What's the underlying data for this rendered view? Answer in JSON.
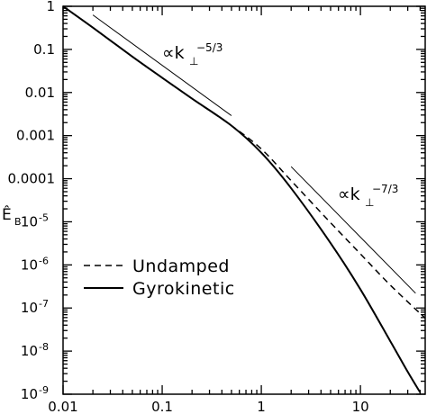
{
  "chart_data": {
    "type": "line",
    "xscale": "log",
    "yscale": "log",
    "xlim": [
      0.01,
      45
    ],
    "ylim": [
      1e-09,
      1
    ],
    "grid": false,
    "legend_position": "bottom-left",
    "xlabel": "",
    "ylabel": "Ê",
    "ylabel_sub": "B",
    "x_ticks": [
      {
        "value": 0.01,
        "label": "0.01"
      },
      {
        "value": 0.1,
        "label": "0.1"
      },
      {
        "value": 1,
        "label": "1"
      },
      {
        "value": 10,
        "label": "10"
      }
    ],
    "y_ticks": [
      {
        "value": 1,
        "label": "1"
      },
      {
        "value": 0.1,
        "label": "0.1"
      },
      {
        "value": 0.01,
        "label": "0.01"
      },
      {
        "value": 0.001,
        "label": "0.001"
      },
      {
        "value": 0.0001,
        "label": "0.0001"
      },
      {
        "value": 1e-05,
        "label": "10",
        "exp": "-5"
      },
      {
        "value": 1e-06,
        "label": "10",
        "exp": "-6"
      },
      {
        "value": 1e-07,
        "label": "10",
        "exp": "-7"
      },
      {
        "value": 1e-08,
        "label": "10",
        "exp": "-8"
      },
      {
        "value": 1e-09,
        "label": "10",
        "exp": "-9"
      }
    ],
    "series": [
      {
        "name": "Undamped",
        "style": "dashed",
        "color": "#000000",
        "x": [
          0.01,
          0.02,
          0.05,
          0.1,
          0.2,
          0.5,
          1,
          2,
          5,
          10,
          20,
          45
        ],
        "y": [
          1,
          0.32,
          0.068,
          0.022,
          0.0072,
          0.0017,
          0.00049,
          9e-05,
          9.5e-06,
          1.8e-06,
          3.4e-07,
          5.8e-08
        ]
      },
      {
        "name": "Gyrokinetic",
        "style": "solid",
        "color": "#000000",
        "x": [
          0.01,
          0.02,
          0.05,
          0.1,
          0.2,
          0.5,
          1,
          2,
          5,
          10,
          20,
          30,
          40
        ],
        "y": [
          1,
          0.32,
          0.068,
          0.022,
          0.0072,
          0.0017,
          0.0004,
          6e-05,
          3.2e-06,
          2.7e-07,
          1.7e-08,
          3.3e-09,
          1.1e-09
        ]
      }
    ],
    "reference_lines": [
      {
        "label": "∝k",
        "sub": "⊥",
        "sup": "−5/3",
        "x": [
          0.02,
          0.5
        ],
        "y": [
          0.63,
          0.0029
        ]
      },
      {
        "label": "∝k",
        "sub": "⊥",
        "sup": "−7/3",
        "x": [
          2,
          36
        ],
        "y": [
          0.00019,
          2.2e-07
        ]
      }
    ],
    "legend": [
      {
        "label": "Undamped",
        "style": "dashed"
      },
      {
        "label": "Gyrokinetic",
        "style": "solid"
      }
    ]
  }
}
